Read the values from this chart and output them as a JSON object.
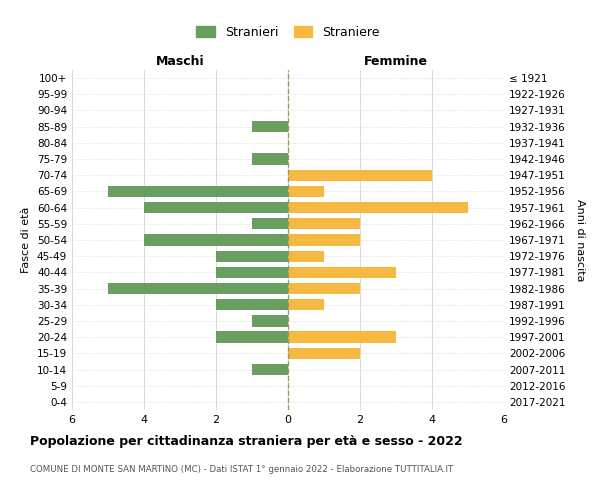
{
  "age_groups": [
    "0-4",
    "5-9",
    "10-14",
    "15-19",
    "20-24",
    "25-29",
    "30-34",
    "35-39",
    "40-44",
    "45-49",
    "50-54",
    "55-59",
    "60-64",
    "65-69",
    "70-74",
    "75-79",
    "80-84",
    "85-89",
    "90-94",
    "95-99",
    "100+"
  ],
  "birth_years": [
    "2017-2021",
    "2012-2016",
    "2007-2011",
    "2002-2006",
    "1997-2001",
    "1992-1996",
    "1987-1991",
    "1982-1986",
    "1977-1981",
    "1972-1976",
    "1967-1971",
    "1962-1966",
    "1957-1961",
    "1952-1956",
    "1947-1951",
    "1942-1946",
    "1937-1941",
    "1932-1936",
    "1927-1931",
    "1922-1926",
    "≤ 1921"
  ],
  "maschi": [
    0,
    0,
    1,
    0,
    2,
    1,
    2,
    5,
    2,
    2,
    4,
    1,
    4,
    5,
    0,
    1,
    0,
    1,
    0,
    0,
    0
  ],
  "femmine": [
    0,
    0,
    0,
    2,
    3,
    0,
    1,
    2,
    3,
    1,
    2,
    2,
    5,
    1,
    4,
    0,
    0,
    0,
    0,
    0,
    0
  ],
  "color_maschi": "#6a9e5f",
  "color_femmine": "#f5b942",
  "xlim": 6,
  "title": "Popolazione per cittadinanza straniera per età e sesso - 2022",
  "subtitle": "COMUNE DI MONTE SAN MARTINO (MC) - Dati ISTAT 1° gennaio 2022 - Elaborazione TUTTITALIA.IT",
  "ylabel_left": "Fasce di età",
  "ylabel_right": "Anni di nascita",
  "xlabel_maschi": "Maschi",
  "xlabel_femmine": "Femmine",
  "legend_stranieri": "Stranieri",
  "legend_straniere": "Straniere",
  "background_color": "#ffffff",
  "grid_color": "#cccccc",
  "bar_height": 0.7
}
